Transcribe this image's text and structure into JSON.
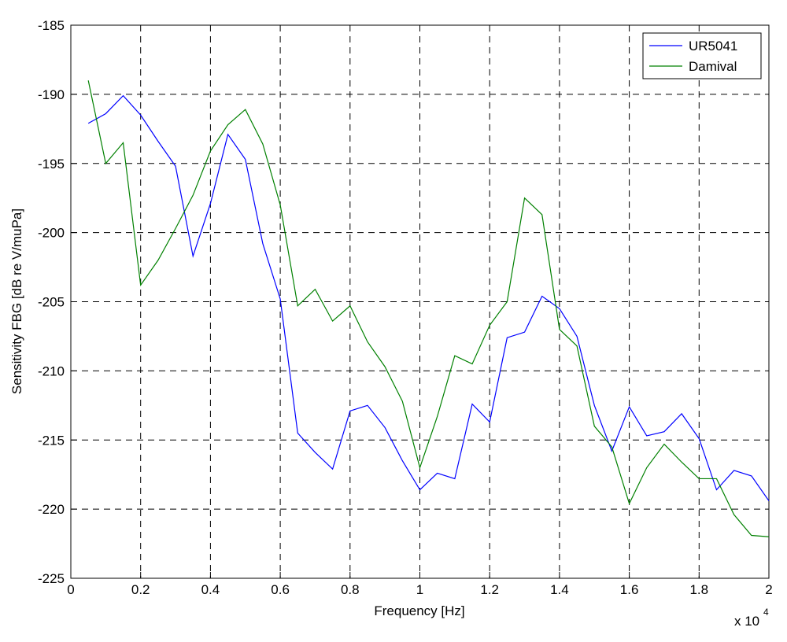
{
  "chart_data": {
    "type": "line",
    "xlabel": "Frequency [Hz]",
    "ylabel": "Sensitivity FBG [dB re V/muPa]",
    "x_scale_label": "x 10",
    "x_scale_exponent": "4",
    "x": [
      0.05,
      0.1,
      0.15,
      0.2,
      0.25,
      0.3,
      0.35,
      0.4,
      0.45,
      0.5,
      0.55,
      0.6,
      0.65,
      0.7,
      0.75,
      0.8,
      0.85,
      0.9,
      0.95,
      1,
      1.05,
      1.1,
      1.15,
      1.2,
      1.25,
      1.3,
      1.35,
      1.4,
      1.45,
      1.5,
      1.55,
      1.6,
      1.65,
      1.7,
      1.75,
      1.8,
      1.85,
      1.9,
      1.95,
      2
    ],
    "series": [
      {
        "name": "UR5041",
        "color": "#0000ff",
        "values": [
          -192.1,
          -191.4,
          -190.1,
          -191.5,
          -193.4,
          -195.2,
          -201.7,
          -197.9,
          -192.9,
          -194.7,
          -200.8,
          -204.8,
          -214.5,
          -215.9,
          -217.1,
          -212.9,
          -212.5,
          -214.1,
          -216.5,
          -218.6,
          -217.4,
          -217.8,
          -212.4,
          -213.7,
          -207.6,
          -207.2,
          -204.6,
          -205.5,
          -207.5,
          -212.5,
          -215.8,
          -212.6,
          -214.7,
          -214.4,
          -213.1,
          -214.9,
          -218.6,
          -217.2,
          -217.6,
          -219.4
        ]
      },
      {
        "name": "Damival",
        "color": "#008000",
        "values": [
          -189.0,
          -195.0,
          -193.5,
          -203.8,
          -202.0,
          -199.7,
          -197.3,
          -194.1,
          -192.2,
          -191.1,
          -193.6,
          -198.0,
          -205.3,
          -204.1,
          -206.4,
          -205.3,
          -207.9,
          -209.7,
          -212.2,
          -217.0,
          -213.3,
          -208.9,
          -209.5,
          -206.7,
          -205.0,
          -197.5,
          -198.7,
          -207.0,
          -208.2,
          -214.0,
          -215.5,
          -219.6,
          -217.0,
          -215.3,
          -216.6,
          -217.8,
          -217.8,
          -220.4,
          -221.9,
          -222.0
        ]
      }
    ],
    "xlim": [
      0,
      2
    ],
    "xticks": [
      0,
      0.2,
      0.4,
      0.6,
      0.8,
      1,
      1.2,
      1.4,
      1.6,
      1.8,
      2
    ],
    "ylim": [
      -225,
      -185
    ],
    "yticks": [
      -225,
      -220,
      -215,
      -210,
      -205,
      -200,
      -195,
      -190,
      -185
    ],
    "grid": true,
    "legend": "upper right"
  }
}
